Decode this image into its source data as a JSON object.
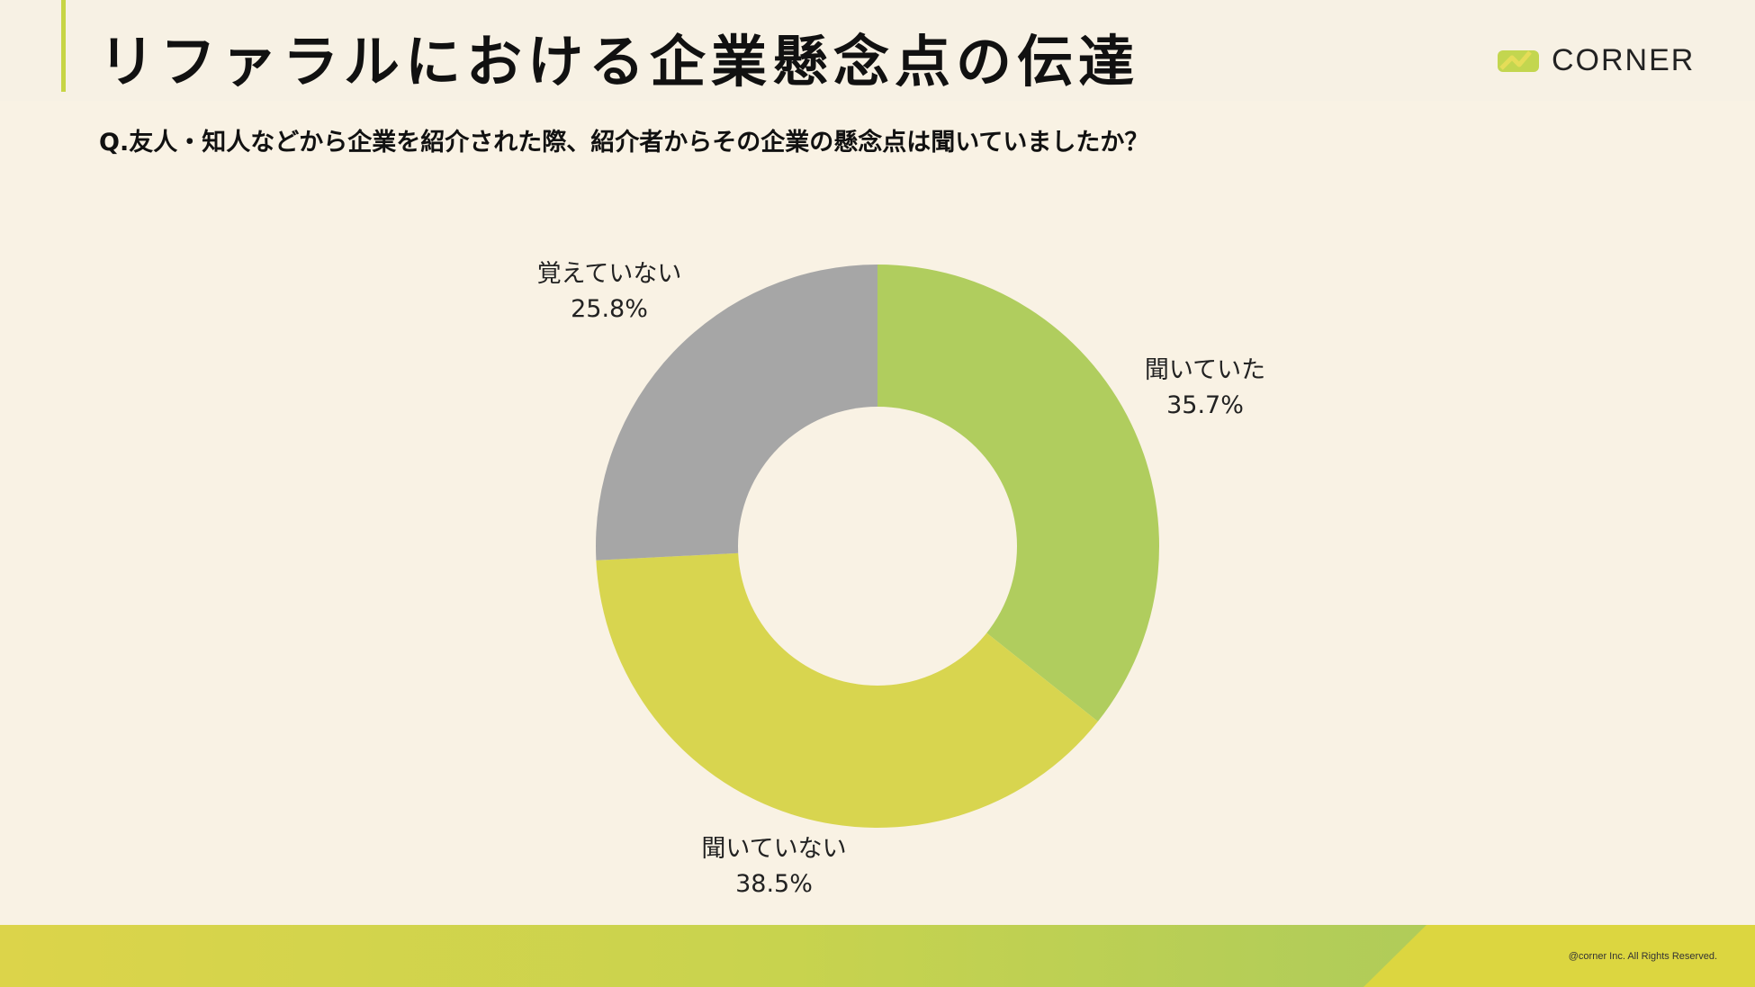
{
  "header": {
    "title": "リファラルにおける企業懸念点の伝達",
    "logo_text": "CORNER"
  },
  "question": "Q.友人・知人などから企業を紹介された際、紹介者からその企業の懸念点は聞いていましたか？",
  "chart_data": {
    "type": "pie",
    "donut": true,
    "categories": [
      "聞いていた",
      "聞いていない",
      "覚えていない"
    ],
    "values": [
      35.7,
      38.5,
      25.8
    ],
    "value_labels": [
      "35.7%",
      "38.5%",
      "25.8%"
    ],
    "colors": [
      "#b0cd5e",
      "#d8d54f",
      "#a6a6a6"
    ],
    "start_angle": "12 o'clock",
    "direction": "clockwise"
  },
  "footer": {
    "copyright": "@corner Inc. All Rights Reserved."
  },
  "colors": {
    "background": "#f9f2e4",
    "accent": "#c7d544"
  }
}
